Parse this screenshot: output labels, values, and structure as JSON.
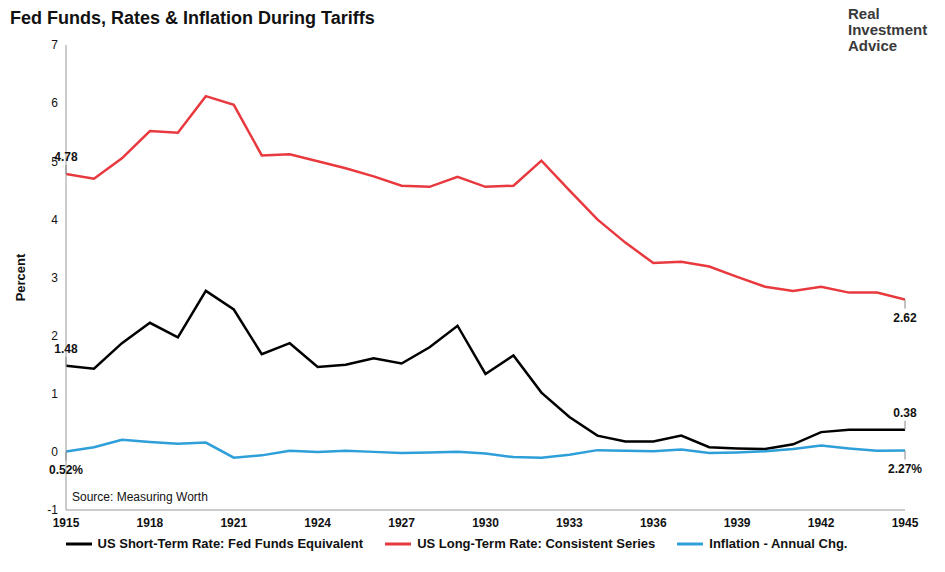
{
  "chart_data": {
    "type": "line",
    "title": "Fed Funds, Rates & Inflation During Tariffs",
    "brand": "Real Investment Advice",
    "source": "Source: Measuring Worth",
    "y_label": "Percent",
    "x": [
      1915,
      1916,
      1917,
      1918,
      1919,
      1920,
      1921,
      1922,
      1923,
      1924,
      1925,
      1926,
      1927,
      1928,
      1929,
      1930,
      1931,
      1932,
      1933,
      1934,
      1935,
      1936,
      1937,
      1938,
      1939,
      1940,
      1941,
      1942,
      1943,
      1944,
      1945
    ],
    "xlim": [
      1915,
      1945
    ],
    "xticks": [
      1915,
      1918,
      1921,
      1924,
      1927,
      1930,
      1933,
      1936,
      1939,
      1942,
      1945
    ],
    "ylim": [
      -1,
      7
    ],
    "yticks": [
      -1,
      0,
      1,
      2,
      3,
      4,
      5,
      6,
      7
    ],
    "grid": false,
    "legend": "bottom",
    "series": [
      {
        "name": "US Short-Term Rate: Fed Funds Equivalent",
        "color": "#000000",
        "values": [
          1.48,
          1.43,
          1.87,
          2.22,
          1.97,
          2.77,
          2.45,
          1.68,
          1.87,
          1.46,
          1.5,
          1.61,
          1.52,
          1.8,
          2.17,
          1.34,
          1.66,
          1.02,
          0.6,
          0.28,
          0.18,
          0.18,
          0.28,
          0.08,
          0.06,
          0.05,
          0.13,
          0.34,
          0.38,
          0.38,
          0.38
        ],
        "value_labels": [
          "1.48",
          null,
          null,
          null,
          null,
          null,
          null,
          null,
          null,
          null,
          null,
          null,
          null,
          null,
          null,
          null,
          null,
          null,
          null,
          null,
          null,
          null,
          null,
          null,
          null,
          null,
          null,
          null,
          null,
          null,
          "0.38"
        ]
      },
      {
        "name": "US Long-Term Rate: Consistent Series",
        "color": "#e8393f",
        "values": [
          4.78,
          4.7,
          5.05,
          5.52,
          5.49,
          6.12,
          5.97,
          5.1,
          5.12,
          5.0,
          4.88,
          4.74,
          4.58,
          4.56,
          4.73,
          4.56,
          4.58,
          5.01,
          4.5,
          4.0,
          3.6,
          3.25,
          3.27,
          3.19,
          3.01,
          2.84,
          2.77,
          2.84,
          2.74,
          2.74,
          2.62
        ],
        "value_labels": [
          "4.78",
          null,
          null,
          null,
          null,
          null,
          null,
          null,
          null,
          null,
          null,
          null,
          null,
          null,
          null,
          null,
          null,
          null,
          null,
          null,
          null,
          null,
          null,
          null,
          null,
          null,
          null,
          null,
          null,
          null,
          "2.62"
        ]
      },
      {
        "name": "Inflation - Annual Chg.",
        "color": "#2e9fd9",
        "values": [
          0.0052,
          0.08,
          0.21,
          0.17,
          0.14,
          0.16,
          -0.1,
          -0.06,
          0.02,
          0.0,
          0.02,
          0.0,
          -0.02,
          -0.01,
          0.0,
          -0.03,
          -0.09,
          -0.1,
          -0.05,
          0.03,
          0.02,
          0.01,
          0.04,
          -0.02,
          -0.01,
          0.01,
          0.05,
          0.11,
          0.06,
          0.02,
          0.0227
        ],
        "value_labels": [
          "0.52%",
          null,
          null,
          null,
          null,
          null,
          null,
          null,
          null,
          null,
          null,
          null,
          null,
          null,
          null,
          null,
          null,
          null,
          null,
          null,
          null,
          null,
          null,
          null,
          null,
          null,
          null,
          null,
          null,
          null,
          "2.27%"
        ]
      }
    ]
  }
}
